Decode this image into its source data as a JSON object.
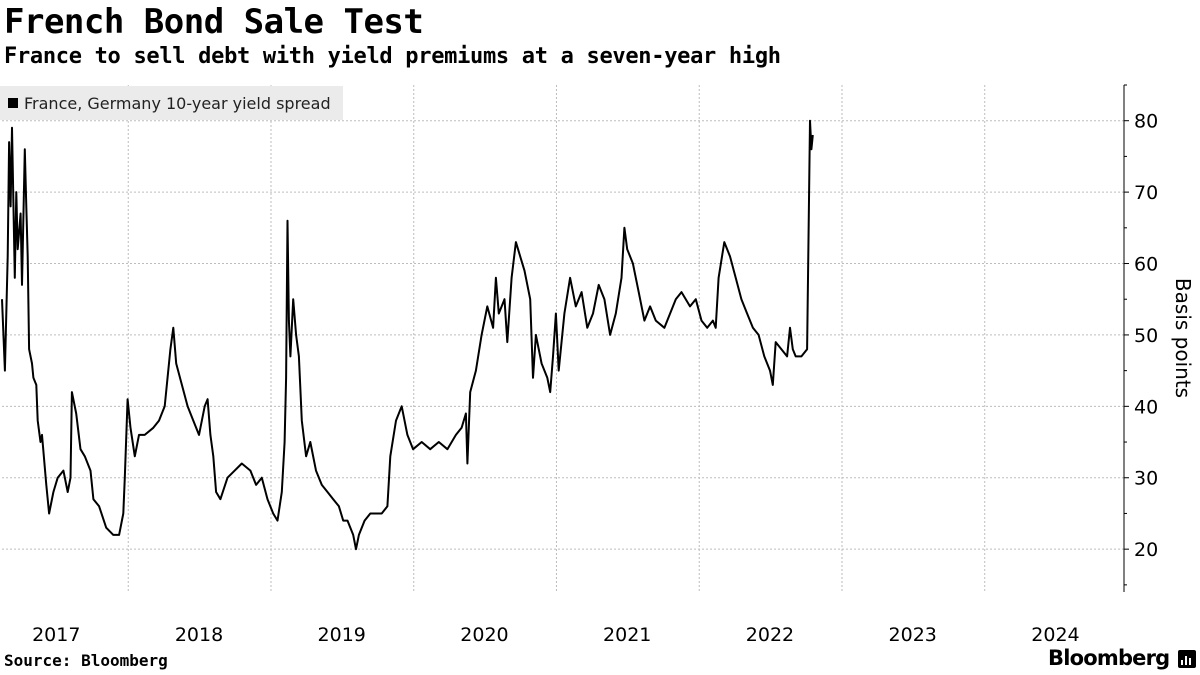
{
  "chart_data": {
    "type": "line",
    "title": "French Bond Sale Test",
    "subtitle": "France to sell debt with yield premiums at a seven-year high",
    "ylabel": "Basis points",
    "xlabel": "",
    "ylim": [
      14,
      85
    ],
    "y_ticks": [
      20,
      30,
      40,
      50,
      60,
      70,
      80
    ],
    "xlim": [
      2016.62,
      2024.48
    ],
    "x_ticks": [
      {
        "label": "2017",
        "value": 2017.0
      },
      {
        "label": "2018",
        "value": 2018.0
      },
      {
        "label": "2019",
        "value": 2019.0
      },
      {
        "label": "2020",
        "value": 2020.0
      },
      {
        "label": "2021",
        "value": 2021.0
      },
      {
        "label": "2022",
        "value": 2022.0
      },
      {
        "label": "2023",
        "value": 2023.0
      },
      {
        "label": "2024",
        "value": 2024.0
      }
    ],
    "x_gridlines": [
      2017.0,
      2018.0,
      2019.0,
      2020.0,
      2021.0,
      2022.0,
      2023.0,
      2024.0
    ],
    "grid": true,
    "legend": {
      "position": "top-left",
      "entries": [
        "France, Germany 10-year yield spread"
      ]
    },
    "series": [
      {
        "name": "France, Germany 10-year yield spread",
        "color": "#000000",
        "points": [
          [
            2016.62,
            55
          ],
          [
            2016.64,
            45
          ],
          [
            2016.66,
            61
          ],
          [
            2016.67,
            77
          ],
          [
            2016.68,
            68
          ],
          [
            2016.69,
            79
          ],
          [
            2016.71,
            58
          ],
          [
            2016.72,
            70
          ],
          [
            2016.73,
            62
          ],
          [
            2016.75,
            67
          ],
          [
            2016.76,
            57
          ],
          [
            2016.78,
            76
          ],
          [
            2016.79,
            68
          ],
          [
            2016.8,
            61
          ],
          [
            2016.81,
            48
          ],
          [
            2016.83,
            46
          ],
          [
            2016.84,
            44
          ],
          [
            2016.86,
            43
          ],
          [
            2016.87,
            38
          ],
          [
            2016.89,
            35
          ],
          [
            2016.9,
            36
          ],
          [
            2016.93,
            29
          ],
          [
            2016.95,
            25
          ],
          [
            2016.98,
            28
          ],
          [
            2017.01,
            30
          ],
          [
            2017.05,
            31
          ],
          [
            2017.08,
            28
          ],
          [
            2017.1,
            30
          ],
          [
            2017.11,
            42
          ],
          [
            2017.14,
            39
          ],
          [
            2017.17,
            34
          ],
          [
            2017.2,
            33
          ],
          [
            2017.24,
            31
          ],
          [
            2017.26,
            27
          ],
          [
            2017.3,
            26
          ],
          [
            2017.35,
            23
          ],
          [
            2017.4,
            22
          ],
          [
            2017.44,
            22
          ],
          [
            2017.47,
            25
          ],
          [
            2017.48,
            30
          ],
          [
            2017.5,
            41
          ],
          [
            2017.52,
            37
          ],
          [
            2017.55,
            33
          ],
          [
            2017.58,
            36
          ],
          [
            2017.62,
            36
          ],
          [
            2017.68,
            37
          ],
          [
            2017.72,
            38
          ],
          [
            2017.76,
            40
          ],
          [
            2017.8,
            48
          ],
          [
            2017.82,
            51
          ],
          [
            2017.84,
            46
          ],
          [
            2017.88,
            43
          ],
          [
            2017.92,
            40
          ],
          [
            2017.96,
            38
          ],
          [
            2018.0,
            36
          ],
          [
            2018.04,
            40
          ],
          [
            2018.06,
            41
          ],
          [
            2018.08,
            36
          ],
          [
            2018.1,
            33
          ],
          [
            2018.12,
            28
          ],
          [
            2018.15,
            27
          ],
          [
            2018.2,
            30
          ],
          [
            2018.25,
            31
          ],
          [
            2018.3,
            32
          ],
          [
            2018.36,
            31
          ],
          [
            2018.4,
            29
          ],
          [
            2018.44,
            30
          ],
          [
            2018.48,
            27
          ],
          [
            2018.52,
            25
          ],
          [
            2018.55,
            24
          ],
          [
            2018.58,
            28
          ],
          [
            2018.6,
            35
          ],
          [
            2018.61,
            44
          ],
          [
            2018.62,
            66
          ],
          [
            2018.63,
            52
          ],
          [
            2018.64,
            47
          ],
          [
            2018.66,
            55
          ],
          [
            2018.68,
            50
          ],
          [
            2018.7,
            47
          ],
          [
            2018.72,
            38
          ],
          [
            2018.75,
            33
          ],
          [
            2018.78,
            35
          ],
          [
            2018.82,
            31
          ],
          [
            2018.86,
            29
          ],
          [
            2018.9,
            28
          ],
          [
            2018.94,
            27
          ],
          [
            2018.98,
            26
          ],
          [
            2019.01,
            24
          ],
          [
            2019.04,
            24
          ],
          [
            2019.08,
            22
          ],
          [
            2019.1,
            20
          ],
          [
            2019.12,
            22
          ],
          [
            2019.16,
            24
          ],
          [
            2019.2,
            25
          ],
          [
            2019.24,
            25
          ],
          [
            2019.28,
            25
          ],
          [
            2019.32,
            26
          ],
          [
            2019.34,
            33
          ],
          [
            2019.38,
            38
          ],
          [
            2019.42,
            40
          ],
          [
            2019.46,
            36
          ],
          [
            2019.5,
            34
          ],
          [
            2019.56,
            35
          ],
          [
            2019.62,
            34
          ],
          [
            2019.68,
            35
          ],
          [
            2019.74,
            34
          ],
          [
            2019.8,
            36
          ],
          [
            2019.84,
            37
          ],
          [
            2019.87,
            39
          ],
          [
            2019.88,
            32
          ],
          [
            2019.9,
            42
          ],
          [
            2019.94,
            45
          ],
          [
            2019.98,
            50
          ],
          [
            2020.02,
            54
          ],
          [
            2020.06,
            51
          ],
          [
            2020.08,
            58
          ],
          [
            2020.1,
            53
          ],
          [
            2020.14,
            55
          ],
          [
            2020.16,
            49
          ],
          [
            2020.19,
            58
          ],
          [
            2020.22,
            63
          ],
          [
            2020.25,
            61
          ],
          [
            2020.28,
            59
          ],
          [
            2020.32,
            55
          ],
          [
            2020.34,
            44
          ],
          [
            2020.36,
            50
          ],
          [
            2020.4,
            46
          ],
          [
            2020.44,
            44
          ],
          [
            2020.46,
            42
          ],
          [
            2020.48,
            47
          ],
          [
            2020.5,
            53
          ],
          [
            2020.52,
            45
          ],
          [
            2020.56,
            53
          ],
          [
            2020.6,
            58
          ],
          [
            2020.64,
            54
          ],
          [
            2020.68,
            56
          ],
          [
            2020.72,
            51
          ],
          [
            2020.76,
            53
          ],
          [
            2020.8,
            57
          ],
          [
            2020.84,
            55
          ],
          [
            2020.88,
            50
          ],
          [
            2020.92,
            53
          ],
          [
            2020.96,
            58
          ],
          [
            2020.98,
            65
          ],
          [
            2021.0,
            62
          ],
          [
            2021.04,
            60
          ],
          [
            2021.08,
            56
          ],
          [
            2021.12,
            52
          ],
          [
            2021.16,
            54
          ],
          [
            2021.2,
            52
          ],
          [
            2021.26,
            51
          ],
          [
            2021.3,
            53
          ],
          [
            2021.34,
            55
          ],
          [
            2021.38,
            56
          ],
          [
            2021.44,
            54
          ],
          [
            2021.48,
            55
          ],
          [
            2021.52,
            52
          ],
          [
            2021.56,
            51
          ],
          [
            2021.6,
            52
          ],
          [
            2021.62,
            51
          ],
          [
            2021.64,
            58
          ],
          [
            2021.68,
            63
          ],
          [
            2021.72,
            61
          ],
          [
            2021.76,
            58
          ],
          [
            2021.8,
            55
          ],
          [
            2021.84,
            53
          ],
          [
            2021.88,
            51
          ],
          [
            2021.92,
            50
          ],
          [
            2021.96,
            47
          ],
          [
            2022.0,
            45
          ],
          [
            2022.02,
            43
          ],
          [
            2022.04,
            49
          ],
          [
            2022.08,
            48
          ],
          [
            2022.12,
            47
          ],
          [
            2022.14,
            51
          ],
          [
            2022.16,
            48
          ],
          [
            2022.18,
            47
          ],
          [
            2022.22,
            47
          ],
          [
            2022.26,
            48
          ],
          [
            2022.28,
            80
          ],
          [
            2022.29,
            76
          ],
          [
            2022.3,
            78
          ]
        ]
      }
    ],
    "source": "Source: Bloomberg",
    "brand": "Bloomberg"
  }
}
